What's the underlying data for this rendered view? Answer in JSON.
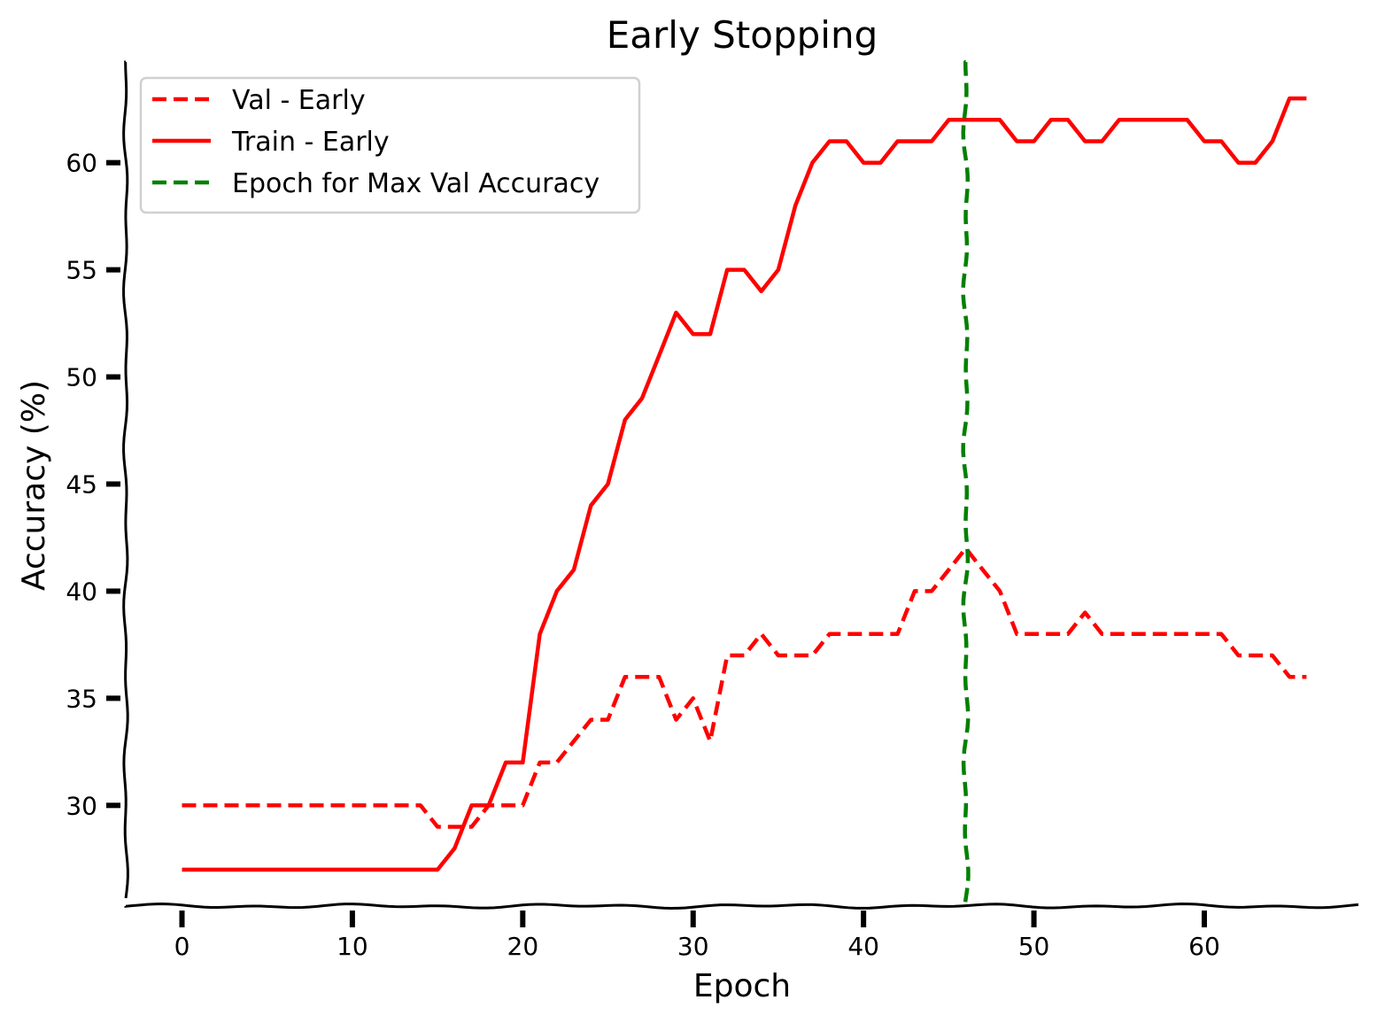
{
  "chart_data": {
    "type": "line",
    "title": "Early Stopping",
    "xlabel": "Epoch",
    "ylabel": "Accuracy (%)",
    "xlim": [
      -3.3,
      69.2
    ],
    "ylim": [
      25.3,
      64.7
    ],
    "x_ticks": [
      0,
      10,
      20,
      30,
      40,
      50,
      60
    ],
    "y_ticks": [
      30,
      35,
      40,
      45,
      50,
      55,
      60
    ],
    "x_tick_labels": [
      "0",
      "10",
      "20",
      "30",
      "40",
      "50",
      "60"
    ],
    "y_tick_labels": [
      "30",
      "35",
      "40",
      "45",
      "50",
      "55",
      "60"
    ],
    "grid": false,
    "legend_position": "top-left",
    "series": [
      {
        "name": "Val - Early",
        "color": "#ff0000",
        "style": "dashed",
        "x": [
          0,
          1,
          2,
          3,
          4,
          5,
          6,
          7,
          8,
          9,
          10,
          11,
          12,
          13,
          14,
          15,
          16,
          17,
          18,
          19,
          20,
          21,
          22,
          23,
          24,
          25,
          26,
          27,
          28,
          29,
          30,
          31,
          32,
          33,
          34,
          35,
          36,
          37,
          38,
          39,
          40,
          41,
          42,
          43,
          44,
          45,
          46,
          47,
          48,
          49,
          50,
          51,
          52,
          53,
          54,
          55,
          56,
          57,
          58,
          59,
          60,
          61,
          62,
          63,
          64,
          65,
          66
        ],
        "values": [
          30,
          30,
          30,
          30,
          30,
          30,
          30,
          30,
          30,
          30,
          30,
          30,
          30,
          30,
          30,
          29,
          29,
          29,
          30,
          30,
          30,
          32,
          32,
          33,
          34,
          34,
          36,
          36,
          36,
          34,
          35,
          33,
          37,
          37,
          38,
          37,
          37,
          37,
          38,
          38,
          38,
          38,
          38,
          40,
          40,
          41,
          42,
          41,
          40,
          38,
          38,
          38,
          38,
          39,
          38,
          38,
          38,
          38,
          38,
          38,
          38,
          38,
          37,
          37,
          37,
          36,
          36
        ]
      },
      {
        "name": "Train - Early",
        "color": "#ff0000",
        "style": "solid",
        "x": [
          0,
          1,
          2,
          3,
          4,
          5,
          6,
          7,
          8,
          9,
          10,
          11,
          12,
          13,
          14,
          15,
          16,
          17,
          18,
          19,
          20,
          21,
          22,
          23,
          24,
          25,
          26,
          27,
          28,
          29,
          30,
          31,
          32,
          33,
          34,
          35,
          36,
          37,
          38,
          39,
          40,
          41,
          42,
          43,
          44,
          45,
          46,
          47,
          48,
          49,
          50,
          51,
          52,
          53,
          54,
          55,
          56,
          57,
          58,
          59,
          60,
          61,
          62,
          63,
          64,
          65,
          66
        ],
        "values": [
          27,
          27,
          27,
          27,
          27,
          27,
          27,
          27,
          27,
          27,
          27,
          27,
          27,
          27,
          27,
          27,
          28,
          30,
          30,
          32,
          32,
          38,
          40,
          41,
          44,
          45,
          48,
          49,
          51,
          53,
          52,
          52,
          55,
          55,
          54,
          55,
          58,
          60,
          61,
          61,
          60,
          60,
          61,
          61,
          61,
          62,
          62,
          62,
          62,
          61,
          61,
          62,
          62,
          61,
          61,
          62,
          62,
          62,
          62,
          62,
          61,
          61,
          60,
          60,
          61,
          63,
          63
        ]
      },
      {
        "name": "Epoch for Max Val Accuracy",
        "color": "#008000",
        "style": "dashed",
        "x": [
          46,
          46
        ],
        "values": [
          25.3,
          64.7
        ]
      }
    ]
  }
}
